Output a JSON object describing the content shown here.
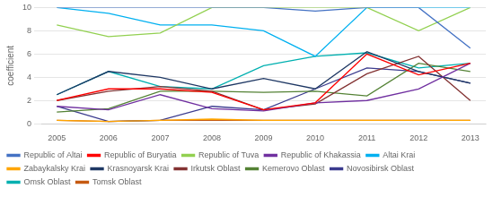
{
  "chart_data": {
    "type": "line",
    "ylabel": "coefficient",
    "x": [
      2005,
      2006,
      2007,
      2008,
      2009,
      2010,
      2011,
      2012,
      2013
    ],
    "xlim": [
      2004.7,
      2013.3
    ],
    "xticks": [
      2005,
      2006,
      2007,
      2008,
      2009,
      2010,
      2011,
      2012,
      2013
    ],
    "ylim": [
      0,
      10
    ],
    "yticks": [
      0,
      2,
      4,
      6,
      8,
      10
    ],
    "grid": "y",
    "legend": "bottom",
    "series": [
      {
        "name": "Republic of Altai",
        "color": "#4472C4",
        "values": [
          10,
          10,
          10,
          10,
          10,
          9.7,
          10,
          10,
          6.5
        ]
      },
      {
        "name": "Republic of Buryatia",
        "color": "#FF0000",
        "values": [
          2.0,
          3.0,
          3.0,
          2.7,
          1.2,
          1.8,
          6.0,
          4.2,
          5.2
        ]
      },
      {
        "name": "Republic of Tuva",
        "color": "#92D050",
        "values": [
          8.5,
          7.5,
          7.8,
          10,
          10,
          10,
          10,
          8.0,
          10
        ]
      },
      {
        "name": "Republic of Khakassia",
        "color": "#7030A0",
        "values": [
          1.5,
          1.2,
          2.5,
          1.3,
          1.1,
          1.8,
          2.0,
          3.0,
          5.2
        ]
      },
      {
        "name": "Altai Krai",
        "color": "#00B0F0",
        "values": [
          10,
          9.5,
          8.5,
          8.5,
          8.0,
          5.8,
          10,
          10,
          10
        ]
      },
      {
        "name": "Zabaykalsky Krai",
        "color": "#FFA500",
        "values": [
          0.3,
          0.2,
          0.3,
          0.4,
          0.3,
          0.3,
          0.3,
          0.3,
          0.3
        ]
      },
      {
        "name": "Krasnoyarsk Krai",
        "color": "#1F3864",
        "values": [
          2.5,
          4.5,
          4.0,
          3.0,
          3.9,
          3.0,
          6.2,
          4.5,
          3.5
        ]
      },
      {
        "name": "Irkutsk Oblast",
        "color": "#833232",
        "values": [
          2.0,
          2.8,
          3.2,
          2.8,
          1.2,
          1.7,
          4.3,
          5.8,
          2.0
        ]
      },
      {
        "name": "Kemerovo Oblast",
        "color": "#548235",
        "values": [
          1.0,
          1.3,
          2.8,
          2.8,
          2.7,
          2.8,
          2.4,
          5.2,
          4.5
        ]
      },
      {
        "name": "Novosibirsk Oblast",
        "color": "#3B3B8E",
        "values": [
          1.5,
          0.2,
          0.3,
          1.5,
          1.2,
          3.0,
          4.8,
          4.5,
          3.5
        ]
      },
      {
        "name": "Omsk Oblast",
        "color": "#00B0B0",
        "values": [
          2.5,
          4.5,
          3.2,
          3.0,
          5.0,
          5.8,
          6.1,
          4.8,
          5.2
        ]
      },
      {
        "name": "Tomsk Oblast",
        "color": "#C55A11",
        "values": [
          0.3,
          0.2,
          0.3,
          0.3,
          0.3,
          0.3,
          0.3,
          0.3,
          0.3
        ]
      }
    ]
  }
}
